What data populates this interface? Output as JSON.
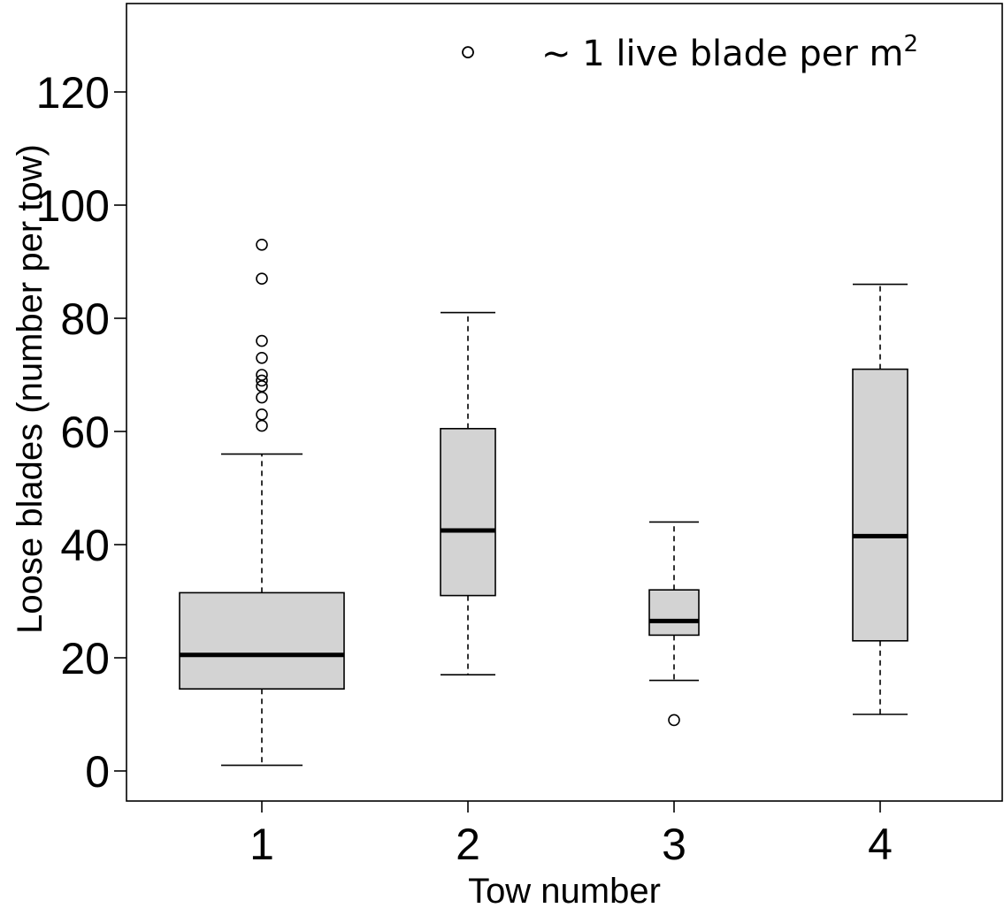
{
  "chart_data": {
    "type": "box",
    "xlabel": "Tow number",
    "ylabel": "Loose blades (number per tow)",
    "categories": [
      "1",
      "2",
      "3",
      "4"
    ],
    "ylim": [
      -5,
      135
    ],
    "yticks": [
      "0",
      "20",
      "40",
      "60",
      "80",
      "100",
      "120"
    ],
    "grid": false,
    "legend": {
      "position": "top-right",
      "marker": "open-circle",
      "text": "~ 1 live blade per m",
      "superscript": "2"
    },
    "boxes": [
      {
        "category": "1",
        "whisker_low": 1,
        "q1": 14.5,
        "median": 20.5,
        "q3": 31.5,
        "whisker_high": 56,
        "outliers": [
          61,
          63,
          66,
          68,
          69,
          70,
          73,
          76,
          87,
          93
        ]
      },
      {
        "category": "2",
        "whisker_low": 17,
        "q1": 31,
        "median": 42.5,
        "q3": 60.5,
        "whisker_high": 81,
        "outliers": [
          127
        ]
      },
      {
        "category": "3",
        "whisker_low": 16,
        "q1": 24,
        "median": 26.5,
        "q3": 32,
        "whisker_high": 44,
        "outliers": [
          9
        ]
      },
      {
        "category": "4",
        "whisker_low": 10,
        "q1": 23,
        "median": 41.5,
        "q3": 71,
        "whisker_high": 86,
        "outliers": []
      }
    ],
    "colors": {
      "box_fill": "#d3d3d3",
      "line": "#000000",
      "median": "#000000"
    }
  }
}
